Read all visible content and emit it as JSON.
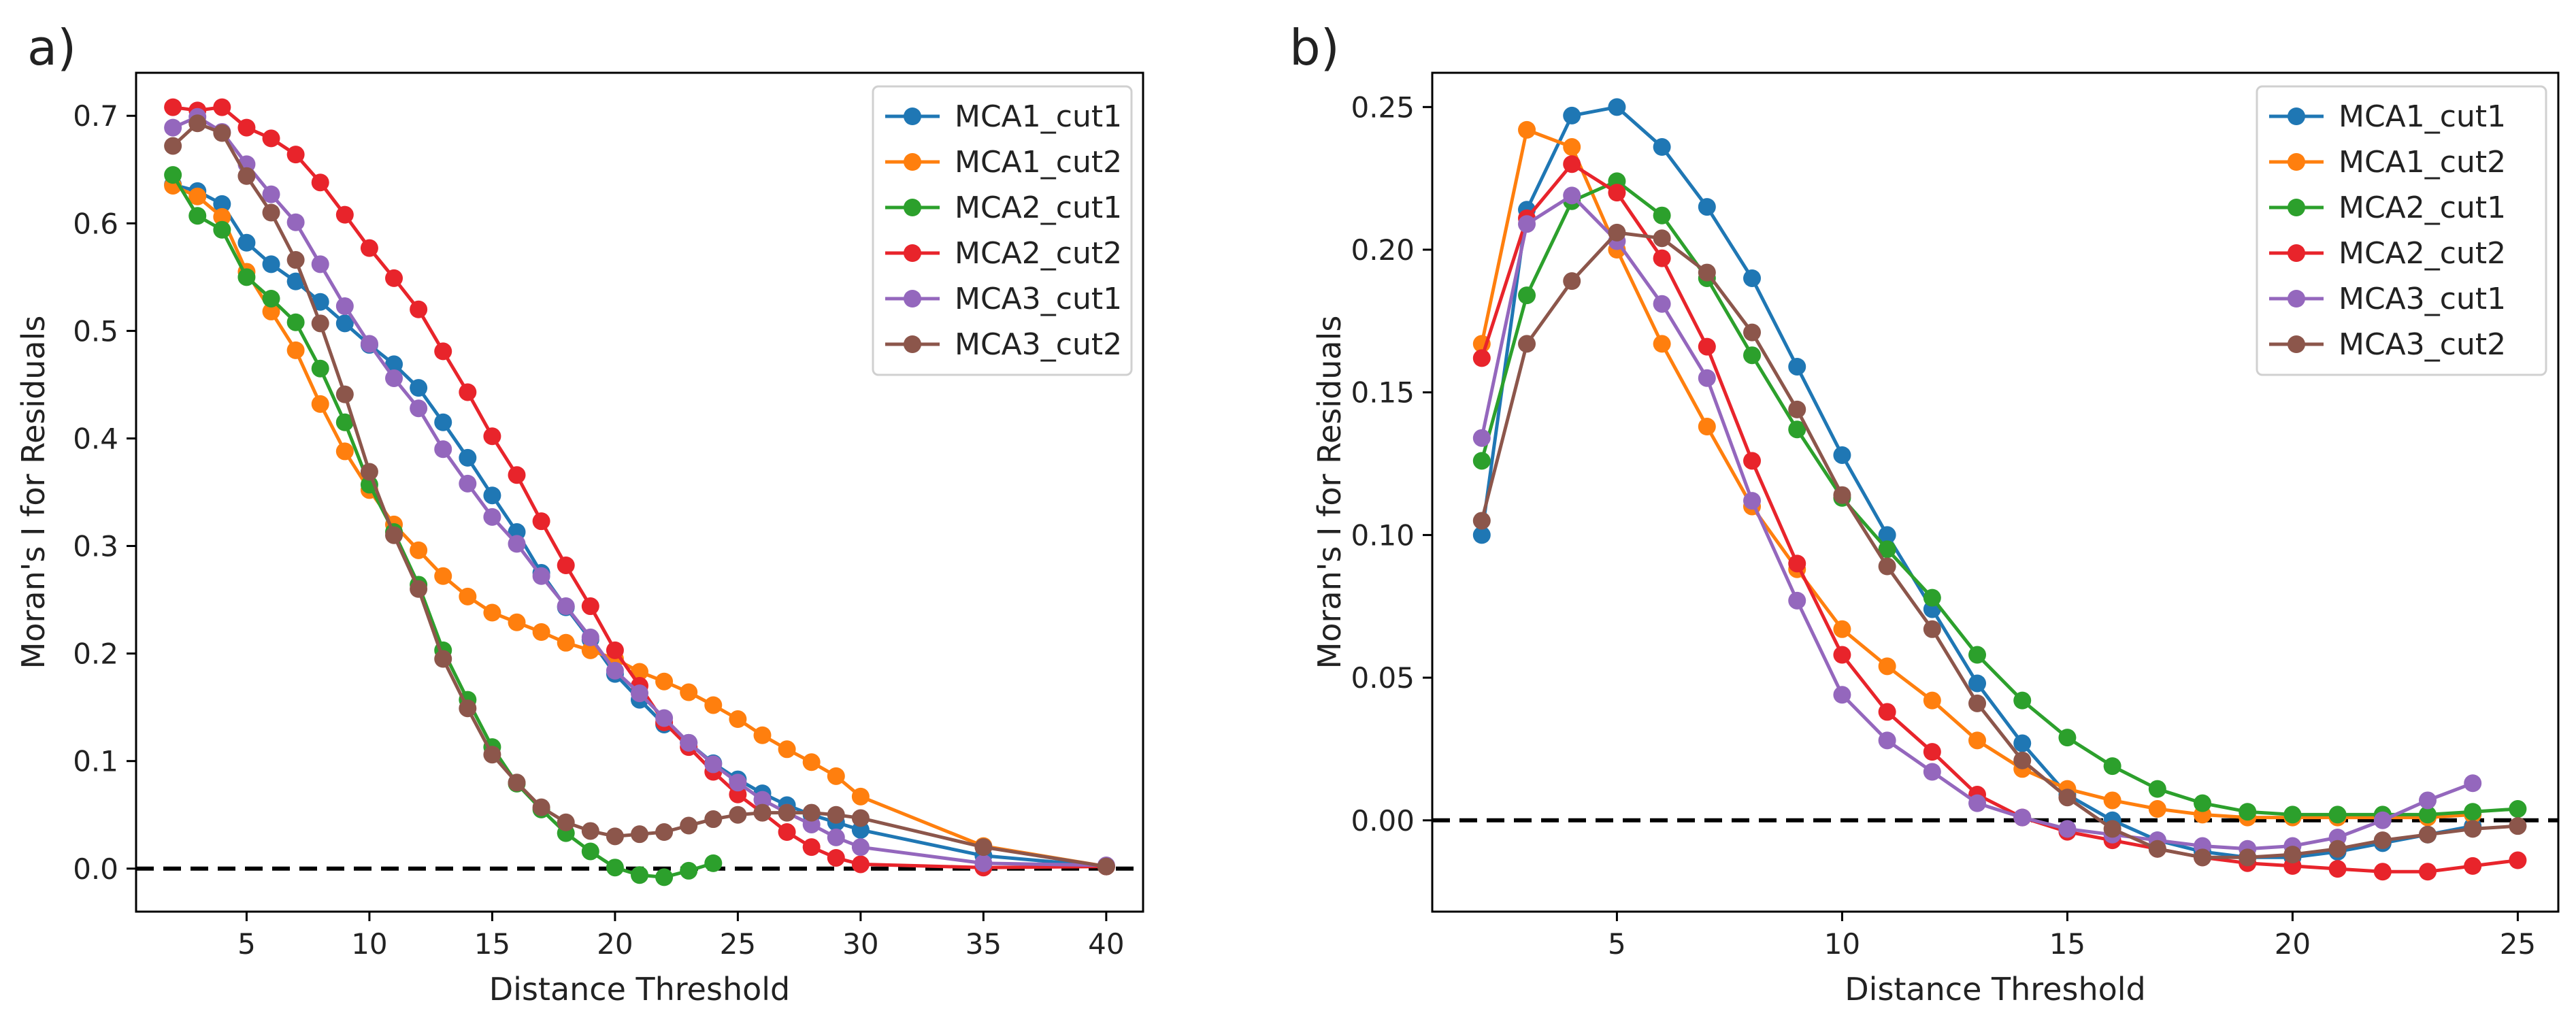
{
  "chart_data": [
    {
      "panel_label": "a)",
      "type": "line",
      "xlabel": "Distance Threshold",
      "ylabel": "Moran's I for Residuals",
      "xlim": [
        0.5,
        41.5
      ],
      "ylim": [
        -0.04,
        0.74
      ],
      "xticks": [
        5,
        10,
        15,
        20,
        25,
        30,
        35,
        40
      ],
      "yticks": [
        0.0,
        0.1,
        0.2,
        0.3,
        0.4,
        0.5,
        0.6,
        0.7
      ],
      "ytick_labels": [
        "0.0",
        "0.1",
        "0.2",
        "0.3",
        "0.4",
        "0.5",
        "0.6",
        "0.7"
      ],
      "reference_line_y": 0.0,
      "legend_position": "top-right",
      "series": [
        {
          "name": "MCA1_cut1",
          "x": [
            2,
            3,
            4,
            5,
            6,
            7,
            8,
            9,
            10,
            11,
            12,
            13,
            14,
            15,
            16,
            17,
            18,
            19,
            20,
            21,
            22,
            23,
            24,
            25,
            26,
            27,
            28,
            29,
            30,
            35,
            40
          ],
          "values": [
            0.636,
            0.63,
            0.618,
            0.582,
            0.562,
            0.546,
            0.527,
            0.507,
            0.487,
            0.469,
            0.447,
            0.415,
            0.382,
            0.347,
            0.313,
            0.275,
            0.243,
            0.213,
            0.181,
            0.157,
            0.134,
            0.117,
            0.098,
            0.083,
            0.07,
            0.059,
            0.05,
            0.043,
            0.036,
            0.012,
            0.002
          ]
        },
        {
          "name": "MCA1_cut2",
          "x": [
            2,
            3,
            4,
            5,
            6,
            7,
            8,
            9,
            10,
            11,
            12,
            13,
            14,
            15,
            16,
            17,
            18,
            19,
            20,
            21,
            22,
            23,
            24,
            25,
            26,
            27,
            28,
            29,
            30,
            35,
            40
          ],
          "values": [
            0.635,
            0.625,
            0.606,
            0.555,
            0.518,
            0.482,
            0.432,
            0.388,
            0.352,
            0.32,
            0.296,
            0.272,
            0.253,
            0.238,
            0.229,
            0.22,
            0.21,
            0.203,
            0.195,
            0.183,
            0.174,
            0.164,
            0.152,
            0.139,
            0.124,
            0.111,
            0.099,
            0.086,
            0.067,
            0.021,
            0.002
          ]
        },
        {
          "name": "MCA2_cut1",
          "x": [
            2,
            3,
            4,
            5,
            6,
            7,
            8,
            9,
            10,
            11,
            12,
            13,
            14,
            15,
            16,
            17,
            18,
            19,
            20,
            21,
            22,
            23,
            24
          ],
          "values": [
            0.645,
            0.607,
            0.594,
            0.55,
            0.53,
            0.508,
            0.465,
            0.415,
            0.357,
            0.313,
            0.264,
            0.203,
            0.157,
            0.113,
            0.079,
            0.055,
            0.033,
            0.016,
            0.001,
            -0.006,
            -0.008,
            -0.002,
            0.005
          ]
        },
        {
          "name": "MCA2_cut2",
          "x": [
            2,
            3,
            4,
            5,
            6,
            7,
            8,
            9,
            10,
            11,
            12,
            13,
            14,
            15,
            16,
            17,
            18,
            19,
            20,
            21,
            22,
            23,
            24,
            25,
            26,
            27,
            28,
            29,
            30,
            35,
            40
          ],
          "values": [
            0.708,
            0.705,
            0.708,
            0.689,
            0.679,
            0.664,
            0.638,
            0.608,
            0.577,
            0.549,
            0.52,
            0.481,
            0.443,
            0.402,
            0.366,
            0.323,
            0.282,
            0.244,
            0.203,
            0.17,
            0.136,
            0.113,
            0.09,
            0.069,
            0.052,
            0.034,
            0.02,
            0.01,
            0.004,
            0.001,
            0.002
          ]
        },
        {
          "name": "MCA3_cut1",
          "x": [
            2,
            3,
            4,
            5,
            6,
            7,
            8,
            9,
            10,
            11,
            12,
            13,
            14,
            15,
            16,
            17,
            18,
            19,
            20,
            21,
            22,
            23,
            24,
            25,
            26,
            27,
            28,
            29,
            30,
            35,
            40
          ],
          "values": [
            0.689,
            0.699,
            0.685,
            0.655,
            0.627,
            0.601,
            0.562,
            0.523,
            0.488,
            0.456,
            0.428,
            0.39,
            0.358,
            0.327,
            0.302,
            0.272,
            0.244,
            0.215,
            0.184,
            0.163,
            0.14,
            0.117,
            0.097,
            0.08,
            0.064,
            0.052,
            0.041,
            0.029,
            0.02,
            0.005,
            0.003
          ]
        },
        {
          "name": "MCA3_cut2",
          "x": [
            2,
            3,
            4,
            5,
            6,
            7,
            8,
            9,
            10,
            11,
            12,
            13,
            14,
            15,
            16,
            17,
            18,
            19,
            20,
            21,
            22,
            23,
            24,
            25,
            26,
            27,
            28,
            29,
            30,
            35,
            40
          ],
          "values": [
            0.672,
            0.693,
            0.684,
            0.644,
            0.61,
            0.566,
            0.507,
            0.441,
            0.369,
            0.31,
            0.26,
            0.195,
            0.149,
            0.106,
            0.08,
            0.057,
            0.043,
            0.035,
            0.03,
            0.032,
            0.034,
            0.04,
            0.046,
            0.05,
            0.052,
            0.052,
            0.052,
            0.05,
            0.047,
            0.02,
            0.002
          ]
        }
      ]
    },
    {
      "panel_label": "b)",
      "type": "line",
      "xlabel": "Distance Threshold",
      "ylabel": "Moran's I for Residuals",
      "xlim": [
        0.9,
        25.9
      ],
      "ylim": [
        -0.032,
        0.262
      ],
      "xticks": [
        5,
        10,
        15,
        20,
        25
      ],
      "yticks": [
        0.0,
        0.05,
        0.1,
        0.15,
        0.2,
        0.25
      ],
      "ytick_labels": [
        "0.00",
        "0.05",
        "0.10",
        "0.15",
        "0.20",
        "0.25"
      ],
      "reference_line_y": 0.0,
      "legend_position": "top-right",
      "series": [
        {
          "name": "MCA1_cut1",
          "x": [
            2,
            3,
            4,
            5,
            6,
            7,
            8,
            9,
            10,
            11,
            12,
            13,
            14,
            15,
            16,
            17,
            18,
            19,
            20,
            21,
            22,
            23,
            24
          ],
          "values": [
            0.1,
            0.214,
            0.247,
            0.25,
            0.236,
            0.215,
            0.19,
            0.159,
            0.128,
            0.1,
            0.074,
            0.048,
            0.027,
            0.009,
            0.0,
            -0.007,
            -0.011,
            -0.013,
            -0.013,
            -0.011,
            -0.008,
            -0.005,
            -0.002
          ]
        },
        {
          "name": "MCA1_cut2",
          "x": [
            2,
            3,
            4,
            5,
            6,
            7,
            8,
            9,
            10,
            11,
            12,
            13,
            14,
            15,
            16,
            17,
            18,
            19,
            20,
            21,
            22,
            23,
            24
          ],
          "values": [
            0.167,
            0.242,
            0.236,
            0.2,
            0.167,
            0.138,
            0.11,
            0.088,
            0.067,
            0.054,
            0.042,
            0.028,
            0.018,
            0.011,
            0.007,
            0.004,
            0.002,
            0.001,
            0.001,
            0.001,
            0.001,
            0.001,
            0.002
          ]
        },
        {
          "name": "MCA2_cut1",
          "x": [
            2,
            3,
            4,
            5,
            6,
            7,
            8,
            9,
            10,
            11,
            12,
            13,
            14,
            15,
            16,
            17,
            18,
            19,
            20,
            21,
            22,
            23,
            24,
            25
          ],
          "values": [
            0.126,
            0.184,
            0.217,
            0.224,
            0.212,
            0.19,
            0.163,
            0.137,
            0.113,
            0.095,
            0.078,
            0.058,
            0.042,
            0.029,
            0.019,
            0.011,
            0.006,
            0.003,
            0.002,
            0.002,
            0.002,
            0.002,
            0.003,
            0.004
          ]
        },
        {
          "name": "MCA2_cut2",
          "x": [
            2,
            3,
            4,
            5,
            6,
            7,
            8,
            9,
            10,
            11,
            12,
            13,
            14,
            15,
            16,
            17,
            18,
            19,
            20,
            21,
            22,
            23,
            24,
            25
          ],
          "values": [
            0.162,
            0.211,
            0.23,
            0.22,
            0.197,
            0.166,
            0.126,
            0.09,
            0.058,
            0.038,
            0.024,
            0.009,
            0.001,
            -0.004,
            -0.007,
            -0.01,
            -0.013,
            -0.015,
            -0.016,
            -0.017,
            -0.018,
            -0.018,
            -0.016,
            -0.014
          ]
        },
        {
          "name": "MCA3_cut1",
          "x": [
            2,
            3,
            4,
            5,
            6,
            7,
            8,
            9,
            10,
            11,
            12,
            13,
            14,
            15,
            16,
            17,
            18,
            19,
            20,
            21,
            22,
            23,
            24
          ],
          "values": [
            0.134,
            0.209,
            0.219,
            0.203,
            0.181,
            0.155,
            0.112,
            0.077,
            0.044,
            0.028,
            0.017,
            0.006,
            0.001,
            -0.003,
            -0.005,
            -0.007,
            -0.009,
            -0.01,
            -0.009,
            -0.006,
            0.0,
            0.007,
            0.013
          ]
        },
        {
          "name": "MCA3_cut2",
          "x": [
            2,
            3,
            4,
            5,
            6,
            7,
            8,
            9,
            10,
            11,
            12,
            13,
            14,
            15,
            16,
            17,
            18,
            19,
            20,
            21,
            22,
            23,
            24,
            25
          ],
          "values": [
            0.105,
            0.167,
            0.189,
            0.206,
            0.204,
            0.192,
            0.171,
            0.144,
            0.114,
            0.089,
            0.067,
            0.041,
            0.021,
            0.008,
            -0.003,
            -0.01,
            -0.013,
            -0.013,
            -0.012,
            -0.01,
            -0.007,
            -0.005,
            -0.003,
            -0.002
          ]
        }
      ]
    }
  ],
  "colors": {
    "MCA1_cut1": "#1f77b4",
    "MCA1_cut2": "#ff7f0e",
    "MCA2_cut1": "#2ca02c",
    "MCA2_cut2": "#e8242b",
    "MCA3_cut1": "#9467bd",
    "MCA3_cut2": "#8c564b"
  }
}
